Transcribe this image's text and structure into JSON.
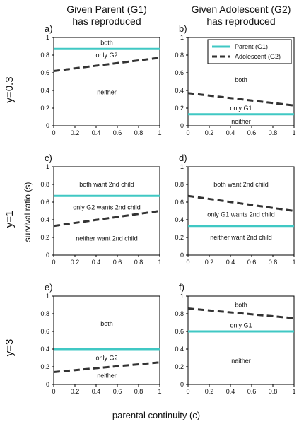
{
  "figure": {
    "col_titles": [
      [
        "Given Parent (G1)",
        "has reproduced"
      ],
      [
        "Given Adolescent (G2)",
        "has reproduced"
      ]
    ],
    "row_labels": [
      "y=0.3",
      "y=1",
      "y=3"
    ],
    "shared_ylabel": "survival ratio (s)",
    "shared_xlabel": "parental continuity (c)",
    "colors": {
      "parent": "#40c8c4",
      "adolescent": "#333333",
      "axis": "#000000"
    }
  },
  "chart_data": [
    {
      "type": "line",
      "panel": "a)",
      "xlim": [
        0,
        1
      ],
      "ylim": [
        0,
        1
      ],
      "xticks": [
        "0",
        "0.2",
        "0.4",
        "0.6",
        "0.8",
        "1"
      ],
      "yticks": [
        "0",
        "0.2",
        "0.4",
        "0.6",
        "0.8",
        "1"
      ],
      "series": [
        {
          "key": "parent",
          "style": "solid",
          "x": [
            0,
            1
          ],
          "y": [
            0.87,
            0.87
          ]
        },
        {
          "key": "adolescent",
          "style": "dashed",
          "x": [
            0,
            1
          ],
          "y": [
            0.62,
            0.77
          ]
        }
      ],
      "regions": [
        {
          "text": "both",
          "x": 0.5,
          "y": 0.94
        },
        {
          "text": "only G2",
          "x": 0.5,
          "y": 0.8
        },
        {
          "text": "neither",
          "x": 0.5,
          "y": 0.38
        }
      ]
    },
    {
      "type": "line",
      "panel": "b)",
      "xlim": [
        0,
        1
      ],
      "ylim": [
        0,
        1
      ],
      "xticks": [
        "0",
        "0.2",
        "0.4",
        "0.6",
        "0.8",
        "1"
      ],
      "yticks": [
        "0",
        "0.2",
        "0.4",
        "0.6",
        "0.8",
        "1"
      ],
      "legend": {
        "placement": "top-right",
        "entries": [
          {
            "key": "parent",
            "label": "Parent (G1)"
          },
          {
            "key": "adolescent",
            "label": "Adolescent (G2)"
          }
        ]
      },
      "series": [
        {
          "key": "parent",
          "style": "solid",
          "x": [
            0,
            1
          ],
          "y": [
            0.13,
            0.13
          ]
        },
        {
          "key": "adolescent",
          "style": "dashed",
          "x": [
            0,
            1
          ],
          "y": [
            0.37,
            0.23
          ]
        }
      ],
      "regions": [
        {
          "text": "both",
          "x": 0.5,
          "y": 0.52
        },
        {
          "text": "only G1",
          "x": 0.5,
          "y": 0.2
        },
        {
          "text": "neither",
          "x": 0.5,
          "y": 0.05
        }
      ]
    },
    {
      "type": "line",
      "panel": "c)",
      "xlim": [
        0,
        1
      ],
      "ylim": [
        0,
        1
      ],
      "xticks": [
        "0",
        "0.2",
        "0.4",
        "0.6",
        "0.8",
        "1"
      ],
      "yticks": [
        "0",
        "0.2",
        "0.4",
        "0.6",
        "0.8",
        "1"
      ],
      "series": [
        {
          "key": "parent",
          "style": "solid",
          "x": [
            0,
            1
          ],
          "y": [
            0.67,
            0.67
          ]
        },
        {
          "key": "adolescent",
          "style": "dashed",
          "x": [
            0,
            1
          ],
          "y": [
            0.33,
            0.5
          ]
        }
      ],
      "regions": [
        {
          "text": "both want 2nd child",
          "x": 0.5,
          "y": 0.8
        },
        {
          "text": "only G2 wants 2nd child",
          "x": 0.5,
          "y": 0.54
        },
        {
          "text": "neither want 2nd child",
          "x": 0.5,
          "y": 0.19
        }
      ]
    },
    {
      "type": "line",
      "panel": "d)",
      "xlim": [
        0,
        1
      ],
      "ylim": [
        0,
        1
      ],
      "xticks": [
        "0",
        "0.2",
        "0.4",
        "0.6",
        "0.8",
        "1"
      ],
      "yticks": [
        "0",
        "0.2",
        "0.4",
        "0.6",
        "0.8",
        "1"
      ],
      "series": [
        {
          "key": "parent",
          "style": "solid",
          "x": [
            0,
            1
          ],
          "y": [
            0.33,
            0.33
          ]
        },
        {
          "key": "adolescent",
          "style": "dashed",
          "x": [
            0,
            1
          ],
          "y": [
            0.67,
            0.5
          ]
        }
      ],
      "regions": [
        {
          "text": "both want 2nd child",
          "x": 0.5,
          "y": 0.8
        },
        {
          "text": "only G1 wants 2nd child",
          "x": 0.5,
          "y": 0.46
        },
        {
          "text": "neither want 2nd child",
          "x": 0.5,
          "y": 0.2
        }
      ]
    },
    {
      "type": "line",
      "panel": "e)",
      "xlim": [
        0,
        1
      ],
      "ylim": [
        0,
        1
      ],
      "xticks": [
        "0",
        "0.2",
        "0.4",
        "0.6",
        "0.8",
        "1"
      ],
      "yticks": [
        "0",
        "0.2",
        "0.4",
        "0.6",
        "0.8",
        "1"
      ],
      "series": [
        {
          "key": "parent",
          "style": "solid",
          "x": [
            0,
            1
          ],
          "y": [
            0.4,
            0.4
          ]
        },
        {
          "key": "adolescent",
          "style": "dashed",
          "x": [
            0,
            1
          ],
          "y": [
            0.14,
            0.25
          ]
        }
      ],
      "regions": [
        {
          "text": "both",
          "x": 0.5,
          "y": 0.69
        },
        {
          "text": "only G2",
          "x": 0.5,
          "y": 0.3
        },
        {
          "text": "neither",
          "x": 0.5,
          "y": 0.1
        }
      ]
    },
    {
      "type": "line",
      "panel": "f)",
      "xlim": [
        0,
        1
      ],
      "ylim": [
        0,
        1
      ],
      "xticks": [
        "0",
        "0.2",
        "0.4",
        "0.6",
        "0.8",
        "1"
      ],
      "yticks": [
        "0",
        "0.2",
        "0.4",
        "0.6",
        "0.8",
        "1"
      ],
      "series": [
        {
          "key": "parent",
          "style": "solid",
          "x": [
            0,
            1
          ],
          "y": [
            0.6,
            0.6
          ]
        },
        {
          "key": "adolescent",
          "style": "dashed",
          "x": [
            0,
            1
          ],
          "y": [
            0.86,
            0.75
          ]
        }
      ],
      "regions": [
        {
          "text": "both",
          "x": 0.5,
          "y": 0.9
        },
        {
          "text": "only G1",
          "x": 0.5,
          "y": 0.67
        },
        {
          "text": "neither",
          "x": 0.5,
          "y": 0.27
        }
      ]
    }
  ]
}
